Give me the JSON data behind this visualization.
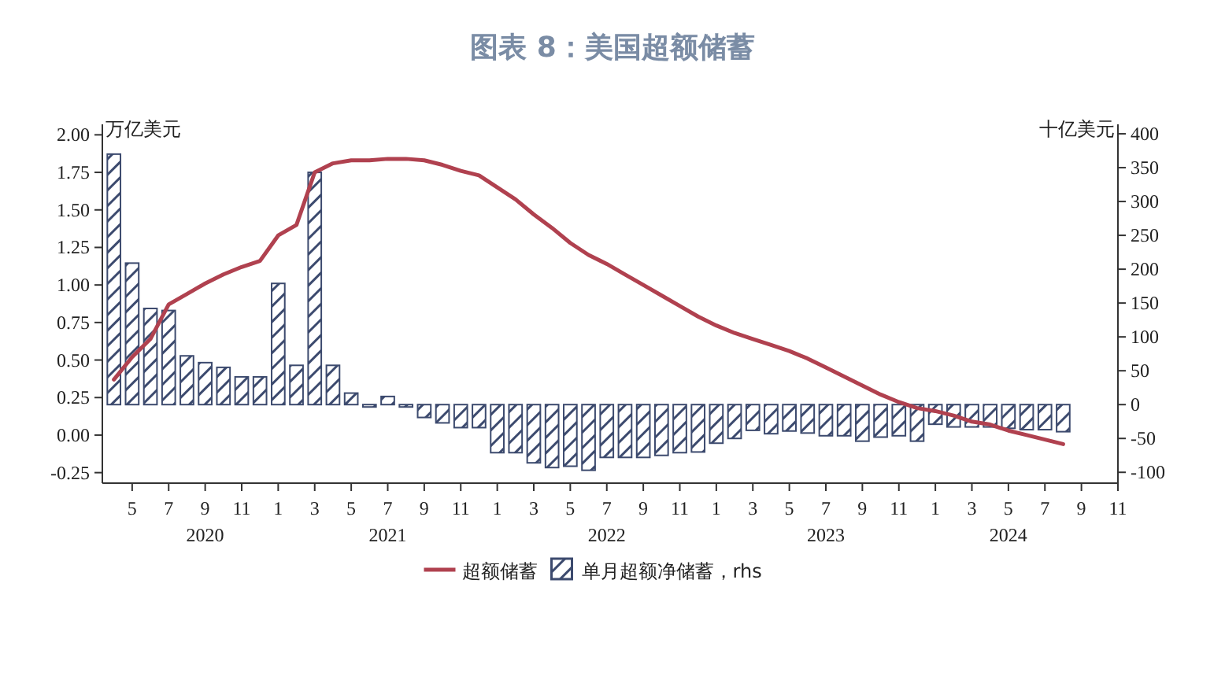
{
  "chart_data": {
    "type": "bar",
    "title": "图表 8：美国超额储蓄",
    "ylabel": "万亿美元",
    "y2label": "十亿美元",
    "legend": "bottom",
    "x": [
      "2020-04",
      "2020-05",
      "2020-06",
      "2020-07",
      "2020-08",
      "2020-09",
      "2020-10",
      "2020-11",
      "2020-12",
      "2021-01",
      "2021-02",
      "2021-03",
      "2021-04",
      "2021-05",
      "2021-06",
      "2021-07",
      "2021-08",
      "2021-09",
      "2021-10",
      "2021-11",
      "2021-12",
      "2022-01",
      "2022-02",
      "2022-03",
      "2022-04",
      "2022-05",
      "2022-06",
      "2022-07",
      "2022-08",
      "2022-09",
      "2022-10",
      "2022-11",
      "2022-12",
      "2023-01",
      "2023-02",
      "2023-03",
      "2023-04",
      "2023-05",
      "2023-06",
      "2023-07",
      "2023-08",
      "2023-09",
      "2023-10",
      "2023-11",
      "2023-12",
      "2024-01",
      "2024-02",
      "2024-03",
      "2024-04",
      "2024-05",
      "2024-06",
      "2024-07",
      "2024-08"
    ],
    "series": [
      {
        "name": "超额储蓄",
        "type": "line",
        "color": "#b0414f",
        "values": [
          0.37,
          0.52,
          0.64,
          0.87,
          0.94,
          1.01,
          1.07,
          1.12,
          1.16,
          1.33,
          1.4,
          1.75,
          1.81,
          1.83,
          1.83,
          1.84,
          1.84,
          1.83,
          1.8,
          1.76,
          1.73,
          1.65,
          1.57,
          1.47,
          1.38,
          1.28,
          1.2,
          1.14,
          1.07,
          1.0,
          0.93,
          0.86,
          0.79,
          0.73,
          0.68,
          0.64,
          0.6,
          0.56,
          0.51,
          0.45,
          0.39,
          0.33,
          0.27,
          0.22,
          0.18,
          0.16,
          0.13,
          0.09,
          0.07,
          0.03,
          0.0,
          -0.03,
          -0.06
        ]
      },
      {
        "name": "单月超额净储蓄，rhs",
        "axis": "y2",
        "color": "#3c4a6e",
        "values": [
          370,
          209,
          142,
          139,
          72,
          62,
          55,
          41,
          41,
          179,
          58,
          343,
          58,
          17,
          -1,
          12,
          -1,
          -19,
          -27,
          -34,
          -34,
          -71,
          -71,
          -86,
          -93,
          -91,
          -97,
          -78,
          -78,
          -78,
          -75,
          -71,
          -70,
          -57,
          -50,
          -38,
          -43,
          -39,
          -42,
          -46,
          -46,
          -54,
          -48,
          -46,
          -54,
          -29,
          -33,
          -33,
          -33,
          -35,
          -37,
          -37,
          -40
        ]
      }
    ],
    "xlim": [
      "2020-03-12",
      "2024-11"
    ],
    "xticks": [
      {
        "value": "2020-05",
        "label": "5"
      },
      {
        "value": "2020-07",
        "label": "7"
      },
      {
        "value": "2020-09",
        "label": "9\n2020"
      },
      {
        "value": "2020-11",
        "label": "11"
      },
      {
        "value": "2021-01",
        "label": "1"
      },
      {
        "value": "2021-03",
        "label": "3"
      },
      {
        "value": "2021-05",
        "label": "5"
      },
      {
        "value": "2021-07",
        "label": "7\n2021"
      },
      {
        "value": "2021-09",
        "label": "9"
      },
      {
        "value": "2021-11",
        "label": "11"
      },
      {
        "value": "2022-01",
        "label": "1"
      },
      {
        "value": "2022-03",
        "label": "3"
      },
      {
        "value": "2022-05",
        "label": "5"
      },
      {
        "value": "2022-07",
        "label": "7\n2022"
      },
      {
        "value": "2022-09",
        "label": "9"
      },
      {
        "value": "2022-11",
        "label": "11"
      },
      {
        "value": "2023-01",
        "label": "1"
      },
      {
        "value": "2023-03",
        "label": "3"
      },
      {
        "value": "2023-05",
        "label": "5"
      },
      {
        "value": "2023-07",
        "label": "7\n2023"
      },
      {
        "value": "2023-09",
        "label": "9"
      },
      {
        "value": "2023-11",
        "label": "11"
      },
      {
        "value": "2024-01",
        "label": "1"
      },
      {
        "value": "2024-03",
        "label": "3"
      },
      {
        "value": "2024-05",
        "label": "5\n2024"
      },
      {
        "value": "2024-07",
        "label": "7"
      },
      {
        "value": "2024-09",
        "label": "9"
      },
      {
        "value": "2024-11",
        "label": "11"
      }
    ],
    "ylim": [
      -0.32,
      2.07
    ],
    "yticks": [
      {
        "value": -0.25,
        "label": "-0.25"
      },
      {
        "value": 0,
        "label": "0.00"
      },
      {
        "value": 0.25,
        "label": "0.25"
      },
      {
        "value": 0.5,
        "label": "0.50"
      },
      {
        "value": 0.75,
        "label": "0.75"
      },
      {
        "value": 1,
        "label": "1.00"
      },
      {
        "value": 1.25,
        "label": "1.25"
      },
      {
        "value": 1.5,
        "label": "1.50"
      },
      {
        "value": 1.75,
        "label": "1.75"
      },
      {
        "value": 2,
        "label": "2.00"
      }
    ],
    "y2lim": [
      -116,
      414
    ],
    "y2ticks": [
      -100,
      -50,
      0,
      50,
      100,
      150,
      200,
      250,
      300,
      350,
      400
    ]
  }
}
